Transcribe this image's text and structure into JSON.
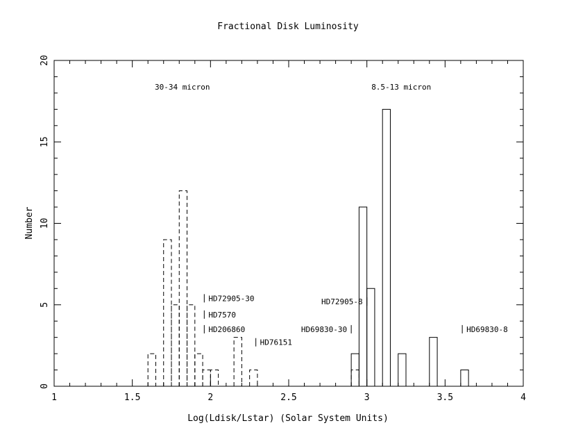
{
  "chart_data": {
    "type": "bar",
    "title": "Fractional Disk Luminosity",
    "xlabel": "Log(Ldisk/Lstar) (Solar System Units)",
    "ylabel": "Number",
    "xlim": [
      1,
      4
    ],
    "ylim": [
      0,
      20
    ],
    "xticks": [
      1,
      1.5,
      2,
      2.5,
      3,
      3.5,
      4
    ],
    "xtick_labels": [
      "1",
      "1.5",
      "2",
      "2.5",
      "3",
      "3.5",
      "4"
    ],
    "yticks": [
      0,
      5,
      10,
      15,
      20
    ],
    "ytick_labels": [
      "0",
      "5",
      "10",
      "15",
      "20"
    ],
    "bin_width": 0.05,
    "series": [
      {
        "name": "30-34 micron",
        "style": "dashed",
        "bins": [
          {
            "x0": 1.6,
            "count": 2
          },
          {
            "x0": 1.65,
            "count": 0
          },
          {
            "x0": 1.7,
            "count": 9
          },
          {
            "x0": 1.75,
            "count": 5
          },
          {
            "x0": 1.8,
            "count": 12
          },
          {
            "x0": 1.85,
            "count": 5
          },
          {
            "x0": 1.9,
            "count": 2
          },
          {
            "x0": 1.95,
            "count": 1
          },
          {
            "x0": 2.0,
            "count": 1
          },
          {
            "x0": 2.05,
            "count": 0
          },
          {
            "x0": 2.1,
            "count": 0
          },
          {
            "x0": 2.15,
            "count": 3
          },
          {
            "x0": 2.2,
            "count": 0
          },
          {
            "x0": 2.25,
            "count": 1
          },
          {
            "x0": 2.3,
            "count": 0
          },
          {
            "x0": 2.35,
            "count": 0
          },
          {
            "x0": 2.4,
            "count": 0
          },
          {
            "x0": 2.45,
            "count": 0
          },
          {
            "x0": 2.5,
            "count": 0
          },
          {
            "x0": 2.55,
            "count": 0
          },
          {
            "x0": 2.6,
            "count": 0
          },
          {
            "x0": 2.65,
            "count": 0
          },
          {
            "x0": 2.7,
            "count": 0
          },
          {
            "x0": 2.75,
            "count": 0
          },
          {
            "x0": 2.8,
            "count": 0
          },
          {
            "x0": 2.85,
            "count": 0
          },
          {
            "x0": 2.9,
            "count": 1
          }
        ]
      },
      {
        "name": "8.5-13 micron",
        "style": "solid",
        "bins": [
          {
            "x0": 2.9,
            "count": 2
          },
          {
            "x0": 2.95,
            "count": 11
          },
          {
            "x0": 3.0,
            "count": 6
          },
          {
            "x0": 3.05,
            "count": 0
          },
          {
            "x0": 3.1,
            "count": 17
          },
          {
            "x0": 3.15,
            "count": 0
          },
          {
            "x0": 3.2,
            "count": 2
          },
          {
            "x0": 3.25,
            "count": 0
          },
          {
            "x0": 3.3,
            "count": 0
          },
          {
            "x0": 3.35,
            "count": 0
          },
          {
            "x0": 3.4,
            "count": 3
          },
          {
            "x0": 3.45,
            "count": 0
          },
          {
            "x0": 3.5,
            "count": 0
          },
          {
            "x0": 3.55,
            "count": 0
          },
          {
            "x0": 3.6,
            "count": 1
          }
        ]
      }
    ],
    "group_labels": [
      {
        "text": "30-34 micron",
        "x": 1.82,
        "y": 18.2
      },
      {
        "text": "8.5-13 micron",
        "x": 3.22,
        "y": 18.2
      }
    ],
    "annotations": [
      {
        "label": "HD72905-30",
        "x": 1.96,
        "y": 5.4,
        "side": "right"
      },
      {
        "label": "HD7570",
        "x": 1.96,
        "y": 4.4,
        "side": "right"
      },
      {
        "label": "HD206860",
        "x": 1.96,
        "y": 3.5,
        "side": "right"
      },
      {
        "label": "HD76151",
        "x": 2.29,
        "y": 2.7,
        "side": "right"
      },
      {
        "label": "HD72905-8",
        "x": 3.0,
        "y": 5.2,
        "side": "left"
      },
      {
        "label": "HD69830-30",
        "x": 2.9,
        "y": 3.5,
        "side": "left"
      },
      {
        "label": "HD69830-8",
        "x": 3.61,
        "y": 3.5,
        "side": "right"
      }
    ]
  }
}
